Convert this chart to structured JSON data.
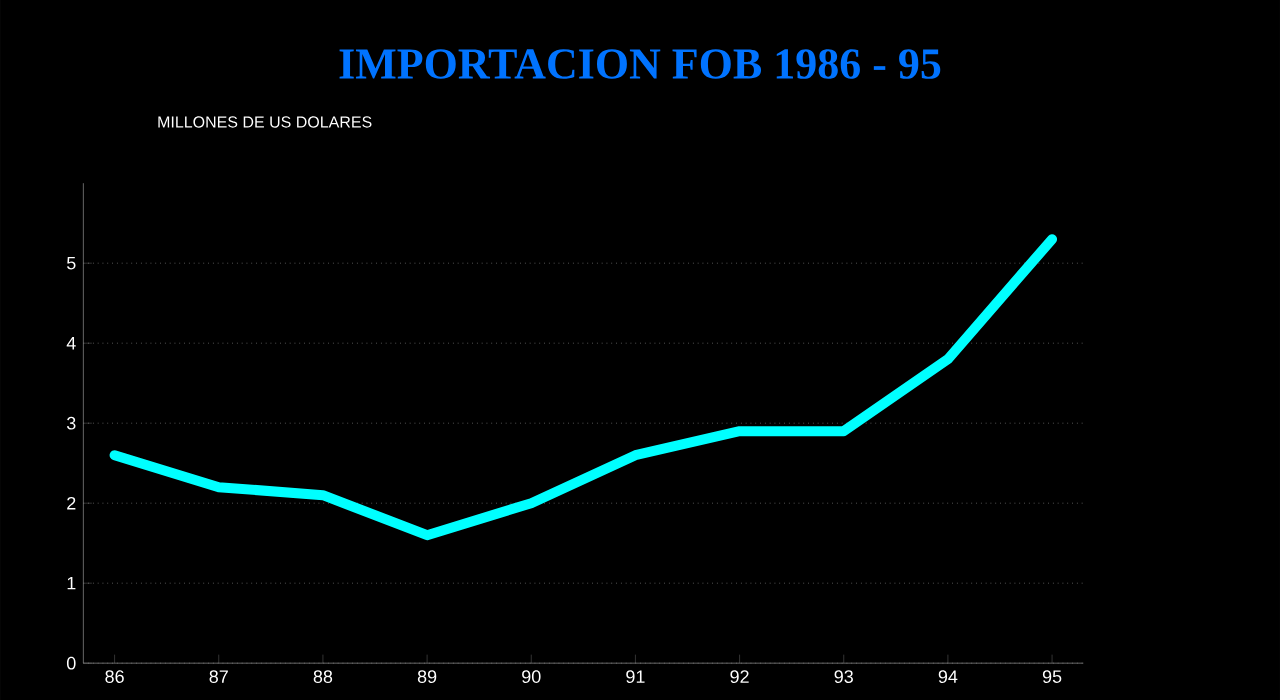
{
  "chart_data": {
    "type": "line",
    "title": "IMPORTACION FOB  1986 - 95",
    "ylabel": "MILLONES DE US DOLARES",
    "categories": [
      "86",
      "87",
      "88",
      "89",
      "90",
      "91",
      "92",
      "93",
      "94",
      "95"
    ],
    "series": [
      {
        "color": "#00ffff",
        "values": [
          2.6,
          2.2,
          2.1,
          1.6,
          2.0,
          2.6,
          2.9,
          2.9,
          3.8,
          5.3
        ]
      }
    ],
    "ylim": [
      0,
      6
    ],
    "yticks": [
      0,
      1,
      2,
      3,
      4,
      5
    ],
    "grid": "y",
    "marker": "none",
    "line_style": "solid"
  }
}
